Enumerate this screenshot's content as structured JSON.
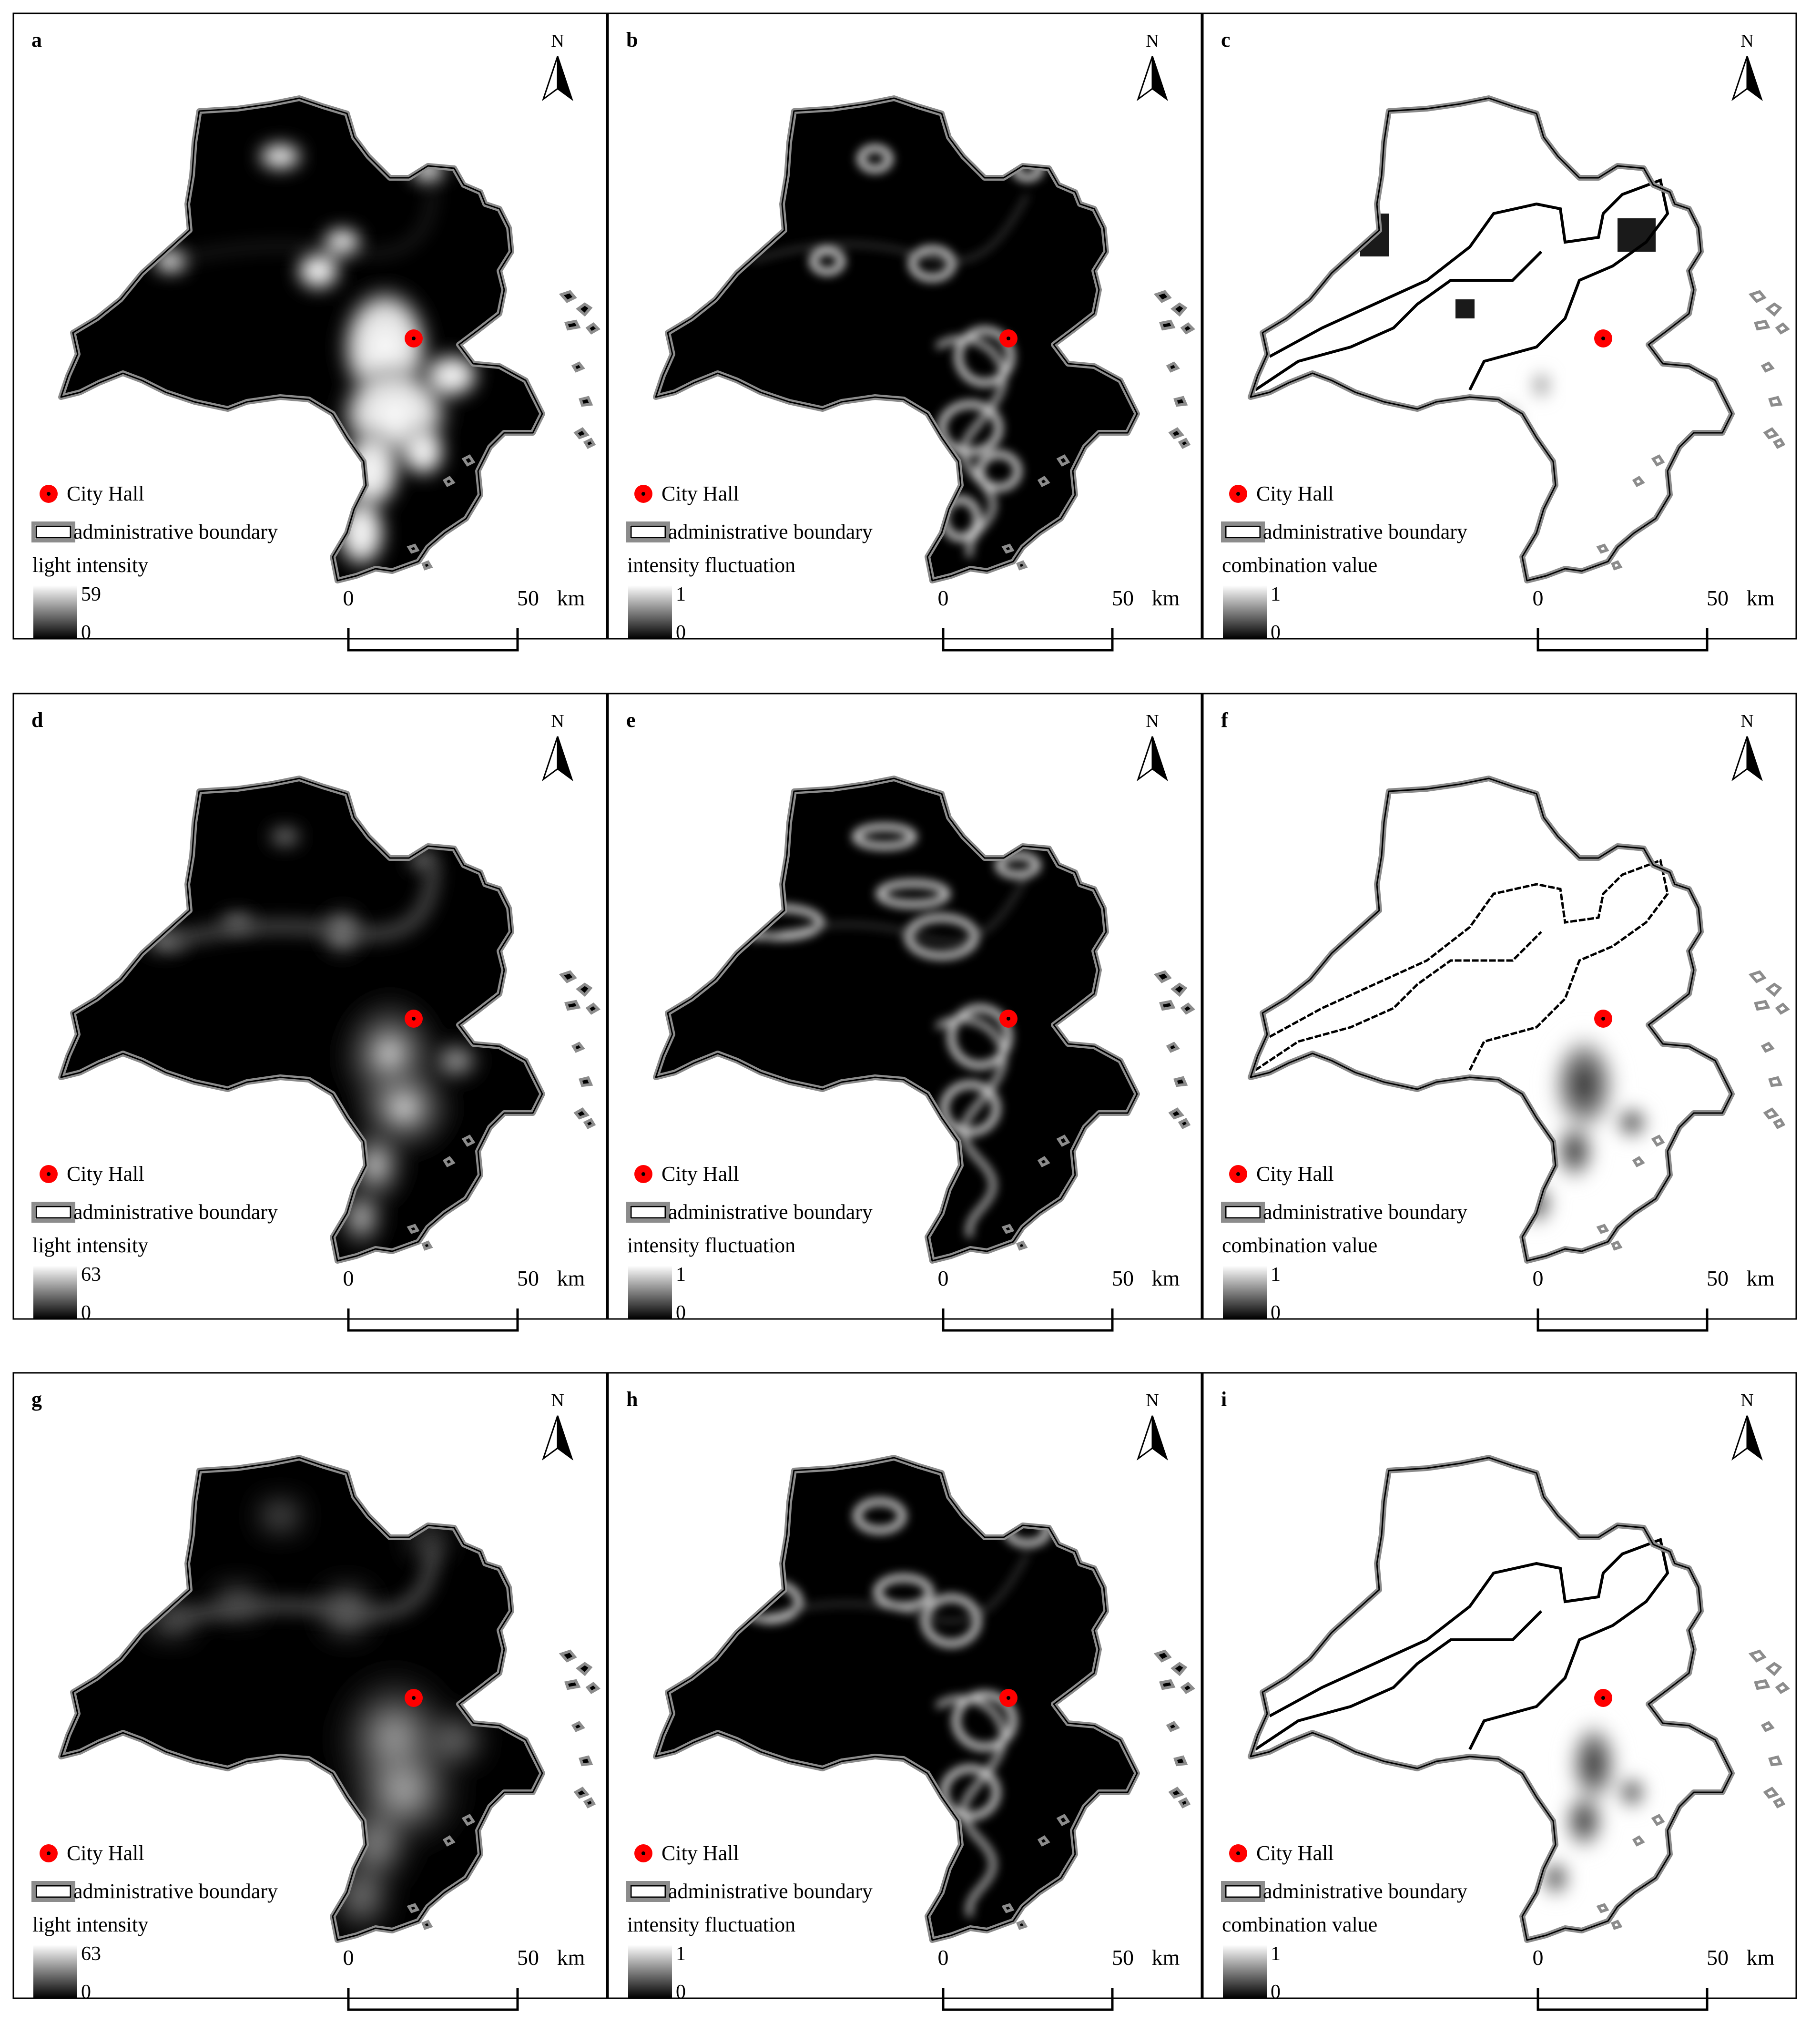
{
  "panels": [
    {
      "letter": "a",
      "legend_title": "light intensity",
      "max": "59",
      "min": "0",
      "style": "light",
      "variant": 0
    },
    {
      "letter": "b",
      "legend_title": "intensity fluctuation",
      "max": "1",
      "min": "0",
      "style": "fluct",
      "variant": 0
    },
    {
      "letter": "c",
      "legend_title": "combination value",
      "max": "1",
      "min": "0",
      "style": "combo",
      "variant": 0
    },
    {
      "letter": "d",
      "legend_title": "light intensity",
      "max": "63",
      "min": "0",
      "style": "light",
      "variant": 1
    },
    {
      "letter": "e",
      "legend_title": "intensity fluctuation",
      "max": "1",
      "min": "0",
      "style": "fluct",
      "variant": 1
    },
    {
      "letter": "f",
      "legend_title": "combination value",
      "max": "1",
      "min": "0",
      "style": "combo",
      "variant": 1
    },
    {
      "letter": "g",
      "legend_title": "light intensity",
      "max": "63",
      "min": "0",
      "style": "light",
      "variant": 2
    },
    {
      "letter": "h",
      "legend_title": "intensity fluctuation",
      "max": "1",
      "min": "0",
      "style": "fluct",
      "variant": 2
    },
    {
      "letter": "i",
      "legend_title": "combination value",
      "max": "1",
      "min": "0",
      "style": "combo",
      "variant": 2
    }
  ],
  "legend": {
    "city_hall": "City Hall",
    "boundary": "administrative boundary"
  },
  "north_label": "N",
  "scale_bar": {
    "start": "0",
    "end": "50",
    "unit": "km"
  },
  "colors": {
    "city_hall_marker": "#ff0000",
    "boundary_outer": "#8c8c8c",
    "boundary_inner": "#000000",
    "panel_border": "#000000"
  }
}
